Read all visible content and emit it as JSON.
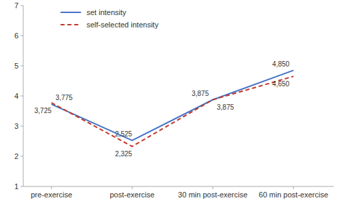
{
  "chart_data": {
    "type": "line",
    "categories": [
      "pre-exercise",
      "post-exercise",
      "30 min post-exercise",
      "60 min post-exercise"
    ],
    "series": [
      {
        "name": "set intensity",
        "color": "#4472C4",
        "line_style": "solid",
        "values": [
          3.725,
          2.525,
          3.875,
          4.85
        ],
        "value_labels": [
          "3,725",
          "2,525",
          "3,875",
          "4,850"
        ]
      },
      {
        "name": "self-selected intensity",
        "color": "#C0392B",
        "line_style": "dashed",
        "values": [
          3.775,
          2.325,
          3.875,
          4.65
        ],
        "value_labels": [
          "3,775",
          "2,325",
          "3,875",
          "4,650"
        ]
      }
    ],
    "ylim": [
      1,
      7
    ],
    "yticks": [
      1,
      2,
      3,
      4,
      5,
      6,
      7
    ],
    "grid": false,
    "legend": "upper left",
    "data_labels": true
  }
}
